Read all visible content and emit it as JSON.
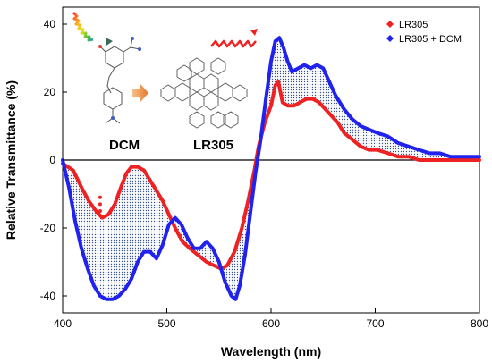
{
  "chart_data": {
    "type": "line",
    "title": "",
    "xlabel": "Wavelength (nm)",
    "ylabel": "Relative Transmittance (%)",
    "xlim": [
      400,
      800
    ],
    "ylim": [
      -45,
      45
    ],
    "xticks": [
      400,
      500,
      600,
      700,
      800
    ],
    "yticks": [
      -40,
      -20,
      0,
      20,
      40
    ],
    "grid": false,
    "legend_position": "top-right",
    "fill_between_series": true,
    "zero_line": true,
    "series": [
      {
        "name": "LR305",
        "color": "#ee2222",
        "points": [
          [
            400,
            -1
          ],
          [
            410,
            -3
          ],
          [
            418,
            -8
          ],
          [
            425,
            -12
          ],
          [
            432,
            -15
          ],
          [
            438,
            -17
          ],
          [
            444,
            -16
          ],
          [
            450,
            -13
          ],
          [
            456,
            -8
          ],
          [
            461,
            -4
          ],
          [
            466,
            -2
          ],
          [
            472,
            -2
          ],
          [
            478,
            -3
          ],
          [
            484,
            -6
          ],
          [
            490,
            -9
          ],
          [
            496,
            -12
          ],
          [
            502,
            -16
          ],
          [
            508,
            -20
          ],
          [
            515,
            -24
          ],
          [
            522,
            -26
          ],
          [
            530,
            -28
          ],
          [
            538,
            -30
          ],
          [
            545,
            -31
          ],
          [
            552,
            -32
          ],
          [
            558,
            -31
          ],
          [
            565,
            -27
          ],
          [
            572,
            -20
          ],
          [
            578,
            -12
          ],
          [
            584,
            -3
          ],
          [
            588,
            4
          ],
          [
            594,
            11
          ],
          [
            600,
            16
          ],
          [
            604,
            22
          ],
          [
            607,
            23
          ],
          [
            611,
            17
          ],
          [
            616,
            16
          ],
          [
            622,
            16
          ],
          [
            628,
            17
          ],
          [
            634,
            18
          ],
          [
            640,
            18
          ],
          [
            646,
            17
          ],
          [
            652,
            15
          ],
          [
            658,
            13
          ],
          [
            664,
            11
          ],
          [
            670,
            8
          ],
          [
            678,
            6
          ],
          [
            686,
            4
          ],
          [
            694,
            3
          ],
          [
            702,
            3
          ],
          [
            712,
            2
          ],
          [
            722,
            1
          ],
          [
            732,
            1
          ],
          [
            742,
            0
          ],
          [
            752,
            0
          ],
          [
            762,
            0
          ],
          [
            772,
            0
          ],
          [
            782,
            0
          ],
          [
            792,
            0
          ],
          [
            800,
            0
          ]
        ],
        "outliers": [
          [
            436,
            -11
          ],
          [
            436,
            -13
          ],
          [
            436,
            -15
          ]
        ]
      },
      {
        "name": "LR305 + DCM",
        "color": "#2222ee",
        "points": [
          [
            400,
            0
          ],
          [
            406,
            -8
          ],
          [
            412,
            -18
          ],
          [
            418,
            -26
          ],
          [
            424,
            -32
          ],
          [
            430,
            -37
          ],
          [
            436,
            -40
          ],
          [
            442,
            -41
          ],
          [
            448,
            -41
          ],
          [
            454,
            -40
          ],
          [
            460,
            -38
          ],
          [
            466,
            -35
          ],
          [
            472,
            -30
          ],
          [
            478,
            -27
          ],
          [
            484,
            -27
          ],
          [
            490,
            -29
          ],
          [
            496,
            -25
          ],
          [
            502,
            -19
          ],
          [
            508,
            -17
          ],
          [
            514,
            -19
          ],
          [
            520,
            -23
          ],
          [
            526,
            -26
          ],
          [
            532,
            -26
          ],
          [
            538,
            -24
          ],
          [
            544,
            -26
          ],
          [
            550,
            -30
          ],
          [
            556,
            -36
          ],
          [
            562,
            -40
          ],
          [
            566,
            -41
          ],
          [
            570,
            -37
          ],
          [
            575,
            -28
          ],
          [
            580,
            -16
          ],
          [
            585,
            -4
          ],
          [
            590,
            6
          ],
          [
            595,
            18
          ],
          [
            600,
            29
          ],
          [
            604,
            35
          ],
          [
            608,
            36
          ],
          [
            612,
            33
          ],
          [
            616,
            29
          ],
          [
            620,
            26
          ],
          [
            626,
            27
          ],
          [
            632,
            28
          ],
          [
            638,
            27
          ],
          [
            644,
            28
          ],
          [
            650,
            27
          ],
          [
            656,
            23
          ],
          [
            662,
            19
          ],
          [
            670,
            15
          ],
          [
            678,
            12
          ],
          [
            686,
            10
          ],
          [
            694,
            9
          ],
          [
            702,
            8
          ],
          [
            712,
            7
          ],
          [
            722,
            5
          ],
          [
            732,
            4
          ],
          [
            742,
            3
          ],
          [
            752,
            2
          ],
          [
            762,
            2
          ],
          [
            772,
            1
          ],
          [
            782,
            1
          ],
          [
            792,
            1
          ],
          [
            800,
            1
          ]
        ]
      }
    ]
  },
  "figure_labels": {
    "dcm": "DCM",
    "lr305": "LR305"
  }
}
